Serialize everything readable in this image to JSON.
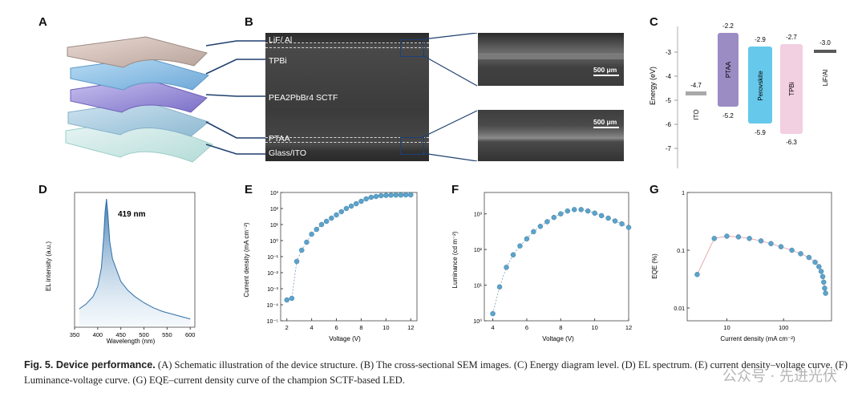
{
  "panels": {
    "A": "A",
    "B": "B",
    "C": "C",
    "D": "D",
    "E": "E",
    "F": "F",
    "G": "G"
  },
  "panel_b": {
    "layers": [
      "LiF/ Al",
      "TPBi",
      "PEA2PbBr4 SCTF",
      "PTAA",
      "Glass/ITO"
    ],
    "scale_bar": "500 μm"
  },
  "panel_c": {
    "ylabel": "Energy (eV)",
    "yticks": [
      "-3",
      "-4",
      "-5",
      "-6",
      "-7"
    ],
    "materials": [
      {
        "name": "ITO",
        "top": "-4.7",
        "bottom": "",
        "color": "#a9a9a9"
      },
      {
        "name": "PTAA",
        "top": "-2.2",
        "bottom": "-5.2",
        "color": "#9b8cc4"
      },
      {
        "name": "Perovskite",
        "top": "-2.9",
        "bottom": "-5.9",
        "color": "#66c8ea"
      },
      {
        "name": "TPBi",
        "top": "-2.7",
        "bottom": "-6.3",
        "color": "#f2cfe1"
      },
      {
        "name": "LiF/Al",
        "top": "-3.0",
        "bottom": "",
        "color": "#5a5a5a"
      }
    ]
  },
  "caption": {
    "lead": "Fig. 5. Device performance.",
    "body": " (A) Schematic illustration of the device structure. (B) The cross-sectional SEM images. (C) Energy diagram level. (D) EL spectrum. (E) current density–voltage curve. (F) Luminance-voltage curve. (G) EQE–current density curve of the champion SCTF-based LED."
  },
  "watermark": "公众号 · 先进光伏",
  "chart_data": [
    {
      "id": "D",
      "type": "area",
      "xlabel": "Wavelength (nm)",
      "ylabel": "EL intensity (a.u.)",
      "annotation": "419 nm",
      "xlim": [
        350,
        610
      ],
      "xticks": [
        350,
        400,
        450,
        500,
        550,
        600
      ],
      "x": [
        360,
        375,
        390,
        400,
        408,
        413,
        416,
        419,
        422,
        426,
        432,
        440,
        450,
        465,
        480,
        500,
        520,
        540,
        560,
        580,
        600
      ],
      "y": [
        0.12,
        0.16,
        0.22,
        0.3,
        0.45,
        0.7,
        0.9,
        1.0,
        0.88,
        0.66,
        0.52,
        0.44,
        0.34,
        0.27,
        0.22,
        0.17,
        0.13,
        0.1,
        0.08,
        0.06,
        0.04
      ]
    },
    {
      "id": "E",
      "type": "scatter",
      "xlabel": "Voltage (V)",
      "ylabel": "Current density (mA cm⁻²)",
      "xlim": [
        1.5,
        12.5
      ],
      "ylim": [
        -5,
        3
      ],
      "log_y": true,
      "xticks": [
        2,
        4,
        6,
        8,
        10,
        12
      ],
      "ytick_labels": [
        "10³",
        "10²",
        "10¹",
        "10⁰",
        "10⁻¹",
        "10⁻²",
        "10⁻³",
        "10⁻⁴",
        "10⁻⁵"
      ],
      "x": [
        2.0,
        2.4,
        2.8,
        3.2,
        3.6,
        4.0,
        4.4,
        4.8,
        5.2,
        5.6,
        6.0,
        6.4,
        6.8,
        7.2,
        7.6,
        8.0,
        8.4,
        8.8,
        9.2,
        9.6,
        10.0,
        10.4,
        10.8,
        11.2,
        11.6,
        12.0
      ],
      "y": [
        -3.7,
        -3.6,
        -1.3,
        -0.6,
        -0.1,
        0.4,
        0.7,
        1.0,
        1.2,
        1.4,
        1.6,
        1.8,
        2.0,
        2.15,
        2.3,
        2.45,
        2.6,
        2.7,
        2.75,
        2.8,
        2.82,
        2.83,
        2.84,
        2.84,
        2.85,
        2.85
      ]
    },
    {
      "id": "F",
      "type": "scatter",
      "xlabel": "Voltage (V)",
      "ylabel": "Luminance (cd m⁻²)",
      "xlim": [
        3.5,
        12
      ],
      "ylim": [
        0,
        3.6
      ],
      "xticks": [
        4,
        6,
        8,
        10,
        12
      ],
      "ytick_labels": [
        "10⁰",
        "10¹",
        "10²",
        "10³"
      ],
      "x": [
        4.0,
        4.4,
        4.8,
        5.2,
        5.6,
        6.0,
        6.4,
        6.8,
        7.2,
        7.6,
        8.0,
        8.4,
        8.8,
        9.2,
        9.6,
        10.0,
        10.4,
        10.8,
        11.2,
        11.6,
        12.0
      ],
      "y": [
        0.2,
        0.95,
        1.5,
        1.85,
        2.1,
        2.3,
        2.5,
        2.65,
        2.78,
        2.9,
        3.0,
        3.08,
        3.12,
        3.12,
        3.08,
        3.02,
        2.95,
        2.88,
        2.8,
        2.72,
        2.62
      ]
    },
    {
      "id": "G",
      "type": "scatter",
      "xlabel": "Current density (mA cm⁻²)",
      "ylabel": "EQE (%)",
      "xlim": [
        2,
        700
      ],
      "ylim": [
        0.006,
        1
      ],
      "log_x": true,
      "log_y": true,
      "xtick_labels": [
        "10",
        "100"
      ],
      "xtick_values": [
        10,
        100
      ],
      "ytick_labels": [
        "1",
        "0.1",
        "0.01"
      ],
      "ytick_values": [
        1,
        0.1,
        0.01
      ],
      "x": [
        3,
        6,
        10,
        16,
        25,
        40,
        60,
        90,
        140,
        200,
        280,
        360,
        420,
        460,
        490,
        510,
        530,
        550
      ],
      "y": [
        0.038,
        0.16,
        0.175,
        0.17,
        0.16,
        0.145,
        0.13,
        0.115,
        0.1,
        0.087,
        0.075,
        0.062,
        0.052,
        0.043,
        0.035,
        0.028,
        0.022,
        0.018
      ]
    }
  ]
}
